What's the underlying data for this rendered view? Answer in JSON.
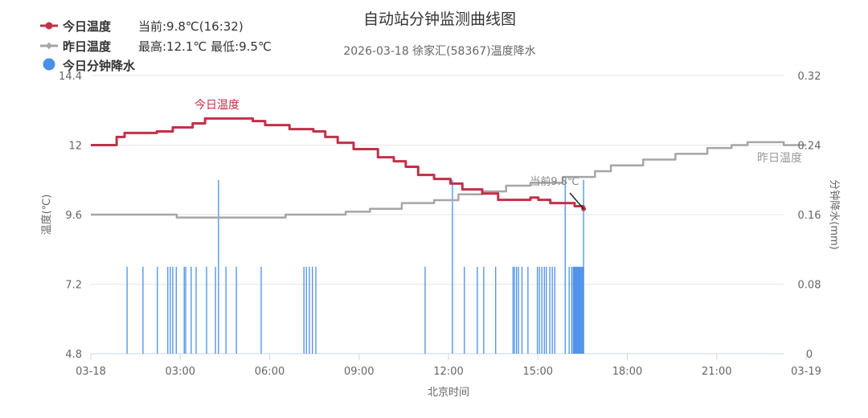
{
  "chart_data": {
    "type": "line",
    "title": "自动站分钟监测曲线图",
    "subtitle": "2026-03-18 徐家汇(58367)温度降水",
    "xlabel": "北京时间",
    "ylabel_left": "温度(℃)",
    "ylabel_right": "分钟降水(mm)",
    "xlim_hours": [
      0,
      24
    ],
    "x_ticks": [
      "03-18",
      "03:00",
      "06:00",
      "09:00",
      "12:00",
      "15:00",
      "18:00",
      "21:00",
      "03-19"
    ],
    "ylim_left": [
      4.8,
      14.4
    ],
    "y_ticks_left": [
      "4.8",
      "7.2",
      "9.6",
      "12",
      "14.4"
    ],
    "ylim_right": [
      0,
      0.32
    ],
    "y_ticks_right": [
      "0",
      "0.08",
      "0.16",
      "0.24",
      "0.32"
    ],
    "grid": "horizontal",
    "legend_placement": "top-left",
    "legend": [
      {
        "name": "今日温度",
        "note": "当前:9.8℃(16:32)",
        "color": "#c23049",
        "icon": "line-dot"
      },
      {
        "name": "昨日温度",
        "note": "最高:12.1℃ 最低:9.5℃",
        "color": "#a6a6a6",
        "icon": "line-diamond"
      },
      {
        "name": "今日分钟降水",
        "note": "",
        "color": "#4a8fe8",
        "icon": "circle"
      }
    ],
    "series": [
      {
        "name": "今日温度",
        "axis": "left",
        "color": "#c23049",
        "label": "今日温度",
        "points": [
          [
            "00:00",
            12.0
          ],
          [
            "00:28",
            12.0
          ],
          [
            "00:52",
            12.28
          ],
          [
            "01:08",
            12.42
          ],
          [
            "02:13",
            12.47
          ],
          [
            "02:45",
            12.61
          ],
          [
            "03:25",
            12.75
          ],
          [
            "03:50",
            12.92
          ],
          [
            "04:46",
            12.92
          ],
          [
            "05:26",
            12.83
          ],
          [
            "05:51",
            12.69
          ],
          [
            "06:40",
            12.55
          ],
          [
            "07:28",
            12.47
          ],
          [
            "07:52",
            12.28
          ],
          [
            "08:17",
            12.08
          ],
          [
            "08:49",
            11.86
          ],
          [
            "09:38",
            11.58
          ],
          [
            "10:10",
            11.44
          ],
          [
            "10:34",
            11.25
          ],
          [
            "10:59",
            10.97
          ],
          [
            "11:31",
            10.83
          ],
          [
            "12:04",
            10.67
          ],
          [
            "12:28",
            10.47
          ],
          [
            "13:08",
            10.33
          ],
          [
            "13:40",
            10.11
          ],
          [
            "14:29",
            10.11
          ],
          [
            "14:45",
            10.19
          ],
          [
            "15:01",
            10.11
          ],
          [
            "15:25",
            10.0
          ],
          [
            "15:58",
            10.0
          ],
          [
            "16:14",
            9.89
          ],
          [
            "16:32",
            9.8
          ]
        ]
      },
      {
        "name": "昨日温度",
        "axis": "left",
        "color": "#a6a6a6",
        "label": "昨日温度",
        "points": [
          [
            "00:00",
            9.6
          ],
          [
            "02:45",
            9.6
          ],
          [
            "02:53",
            9.5
          ],
          [
            "06:23",
            9.5
          ],
          [
            "06:32",
            9.6
          ],
          [
            "07:44",
            9.6
          ],
          [
            "08:33",
            9.7
          ],
          [
            "09:22",
            9.8
          ],
          [
            "10:26",
            10.0
          ],
          [
            "11:31",
            10.1
          ],
          [
            "12:20",
            10.3
          ],
          [
            "13:08",
            10.4
          ],
          [
            "13:56",
            10.6
          ],
          [
            "14:45",
            10.7
          ],
          [
            "15:50",
            10.9
          ],
          [
            "16:55",
            11.1
          ],
          [
            "17:27",
            11.3
          ],
          [
            "18:32",
            11.5
          ],
          [
            "19:37",
            11.7
          ],
          [
            "20:41",
            11.9
          ],
          [
            "21:30",
            12.0
          ],
          [
            "22:02",
            12.1
          ],
          [
            "22:51",
            12.1
          ],
          [
            "23:15",
            12.0
          ],
          [
            "24:00",
            12.0
          ]
        ]
      },
      {
        "name": "今日分钟降水",
        "axis": "right",
        "type": "bar",
        "color": "#4a8fe8",
        "points": [
          [
            "01:13",
            0.1
          ],
          [
            "01:45",
            0.1
          ],
          [
            "02:14",
            0.1
          ],
          [
            "02:35",
            0.1
          ],
          [
            "02:40",
            0.1
          ],
          [
            "02:45",
            0.1
          ],
          [
            "02:52",
            0.1
          ],
          [
            "03:08",
            0.1
          ],
          [
            "03:11",
            0.1
          ],
          [
            "03:22",
            0.1
          ],
          [
            "03:32",
            0.1
          ],
          [
            "03:53",
            0.1
          ],
          [
            "04:11",
            0.1
          ],
          [
            "04:17",
            0.2
          ],
          [
            "04:32",
            0.1
          ],
          [
            "04:53",
            0.1
          ],
          [
            "05:43",
            0.1
          ],
          [
            "07:09",
            0.1
          ],
          [
            "07:14",
            0.1
          ],
          [
            "07:20",
            0.1
          ],
          [
            "07:26",
            0.1
          ],
          [
            "07:33",
            0.1
          ],
          [
            "11:13",
            0.1
          ],
          [
            "12:08",
            0.2
          ],
          [
            "12:32",
            0.1
          ],
          [
            "12:58",
            0.1
          ],
          [
            "13:11",
            0.1
          ],
          [
            "13:35",
            0.1
          ],
          [
            "14:10",
            0.1
          ],
          [
            "14:13",
            0.1
          ],
          [
            "14:17",
            0.1
          ],
          [
            "14:21",
            0.1
          ],
          [
            "14:28",
            0.1
          ],
          [
            "14:40",
            0.1
          ],
          [
            "14:59",
            0.1
          ],
          [
            "15:03",
            0.1
          ],
          [
            "15:08",
            0.1
          ],
          [
            "15:13",
            0.1
          ],
          [
            "15:17",
            0.1
          ],
          [
            "15:24",
            0.1
          ],
          [
            "15:29",
            0.1
          ],
          [
            "15:34",
            0.1
          ],
          [
            "15:55",
            0.2
          ],
          [
            "16:03",
            0.1
          ],
          [
            "16:08",
            0.1
          ],
          [
            "16:11",
            0.1
          ],
          [
            "16:13",
            0.1
          ],
          [
            "16:15",
            0.1
          ],
          [
            "16:17",
            0.1
          ],
          [
            "16:19",
            0.1
          ],
          [
            "16:21",
            0.1
          ],
          [
            "16:23",
            0.1
          ],
          [
            "16:25",
            0.1
          ],
          [
            "16:27",
            0.1
          ],
          [
            "16:29",
            0.1
          ],
          [
            "16:31",
            0.1
          ],
          [
            "16:32",
            0.2
          ]
        ]
      }
    ],
    "annotation": {
      "text": "当前9.8℃",
      "at": "16:32",
      "value": 9.8
    }
  }
}
